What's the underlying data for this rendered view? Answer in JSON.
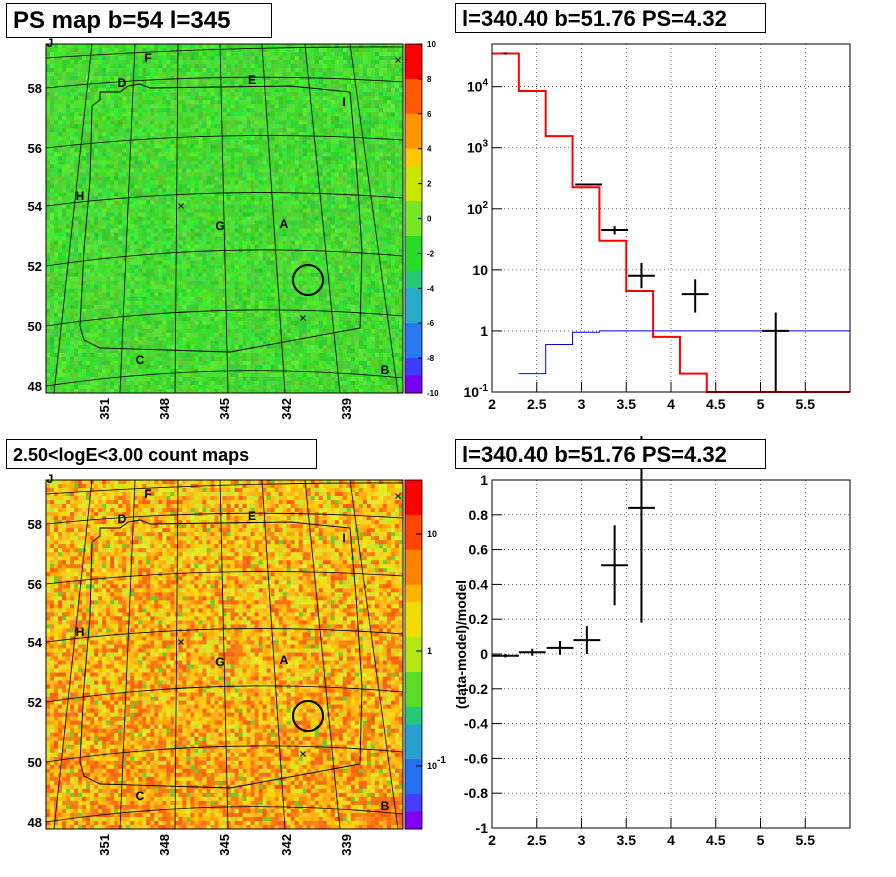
{
  "titles": {
    "tl": "PS map b=54 l=345",
    "tr": "l=340.40 b=51.76 PS=4.32",
    "bl": "2.50<logE<3.00 count maps",
    "br": "l=340.40 b=51.76 PS=4.32"
  },
  "maps": {
    "lat_labels": [
      "58",
      "56",
      "54",
      "52",
      "50",
      "48"
    ],
    "lon_labels": [
      "351",
      "348",
      "345",
      "342",
      "339"
    ],
    "region_labels": [
      "J",
      "F",
      "D",
      "E",
      "I",
      "H",
      "G",
      "A",
      "C",
      "B"
    ],
    "ps_colorbar": {
      "min": -10,
      "max": 10,
      "ticks": [
        "10",
        "8",
        "6",
        "4",
        "2",
        "0",
        "-2",
        "-4",
        "-6",
        "-8",
        "-10"
      ]
    },
    "count_colorbar": {
      "scale": "log",
      "ticks": [
        "10",
        "1",
        "10^-1"
      ]
    }
  },
  "chart_data": [
    {
      "type": "line",
      "panel": "spectrum",
      "title": "l=340.40 b=51.76 PS=4.32",
      "xlim": [
        2,
        6
      ],
      "ylim": [
        0.1,
        50000
      ],
      "yscale": "log",
      "grid": true,
      "x_ticks": [
        "2",
        "2.5",
        "3",
        "3.5",
        "4",
        "4.5",
        "5",
        "5.5"
      ],
      "y_ticks": [
        "10^-1",
        "1",
        "10",
        "10^2",
        "10^3",
        "10^4"
      ],
      "series": [
        {
          "style": "histogram",
          "color": "#ff0000",
          "edges": [
            2.0,
            2.3,
            2.6,
            2.9,
            3.2,
            3.5,
            3.8,
            4.1,
            4.4,
            6.0
          ],
          "values": [
            35000,
            8500,
            1550,
            225,
            30,
            4.5,
            0.8,
            0.2,
            0.1
          ]
        },
        {
          "style": "histogram",
          "color": "#0000ff",
          "edges": [
            2.3,
            2.6,
            2.9,
            3.2,
            3.5,
            6.0
          ],
          "values": [
            0.2,
            0.6,
            0.95,
            1.0,
            1.0
          ]
        },
        {
          "style": "errorbars",
          "color": "#000000",
          "points": [
            {
              "x": 2.15,
              "xerr": 0.02,
              "y": 35000,
              "ylo": 34500,
              "yhi": 35500
            },
            {
              "x": 3.08,
              "xerr": 0.15,
              "y": 250,
              "ylo": 240,
              "yhi": 260
            },
            {
              "x": 3.37,
              "xerr": 0.15,
              "y": 45,
              "ylo": 38,
              "yhi": 52
            },
            {
              "x": 3.67,
              "xerr": 0.15,
              "y": 8,
              "ylo": 5,
              "yhi": 13
            },
            {
              "x": 4.27,
              "xerr": 0.15,
              "y": 4,
              "ylo": 2,
              "yhi": 7
            },
            {
              "x": 5.17,
              "xerr": 0.15,
              "y": 1.0,
              "ylo": 0.1,
              "yhi": 2
            }
          ]
        }
      ]
    },
    {
      "type": "scatter",
      "panel": "residual",
      "title": "l=340.40 b=51.76 PS=4.32",
      "ylabel": "(data-model)/model",
      "xlim": [
        2,
        6
      ],
      "ylim": [
        -1,
        1
      ],
      "grid": true,
      "x_ticks": [
        "2",
        "2.5",
        "3",
        "3.5",
        "4",
        "4.5",
        "5",
        "5.5"
      ],
      "y_ticks": [
        "-1",
        "-0.8",
        "-0.6",
        "-0.4",
        "-0.2",
        "0",
        "0.2",
        "0.4",
        "0.6",
        "0.8",
        "1"
      ],
      "points": [
        {
          "x": 2.15,
          "xerr": 0.15,
          "y": -0.01,
          "yerr": 0.01
        },
        {
          "x": 2.45,
          "xerr": 0.15,
          "y": 0.01,
          "yerr": 0.02
        },
        {
          "x": 2.76,
          "xerr": 0.15,
          "y": 0.035,
          "yerr": 0.04
        },
        {
          "x": 3.06,
          "xerr": 0.15,
          "y": 0.08,
          "yerr": 0.08
        },
        {
          "x": 3.37,
          "xerr": 0.15,
          "y": 0.51,
          "yerr": 0.23
        },
        {
          "x": 3.67,
          "xerr": 0.15,
          "y": 0.84,
          "yerr": 0.66
        }
      ]
    }
  ]
}
